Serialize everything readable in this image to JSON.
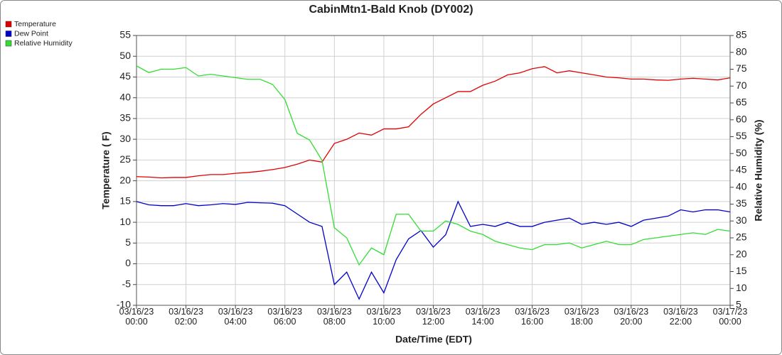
{
  "chart_data": {
    "type": "line",
    "title": "CabinMtn1-Bald Knob (DY002)",
    "xlabel": "Date/Time (EDT)",
    "ylabel": "Temperature ( F)",
    "y2label": "Relative Humidity (%)",
    "grid": true,
    "legend": "top-left",
    "x": [
      0,
      0.5,
      1,
      1.5,
      2,
      2.5,
      3,
      3.5,
      4,
      4.5,
      5,
      5.5,
      6,
      6.5,
      7,
      7.5,
      8,
      8.5,
      9,
      9.5,
      10,
      10.5,
      11,
      11.5,
      12,
      12.5,
      13,
      13.5,
      14,
      14.5,
      15,
      15.5,
      16,
      16.5,
      17,
      17.5,
      18,
      18.5,
      19,
      19.5,
      20,
      20.5,
      21,
      21.5,
      22,
      22.5,
      23,
      23.5,
      24
    ],
    "xlim": [
      0,
      24
    ],
    "xticks": [
      {
        "value": 0,
        "label": "03/16/23\n00:00"
      },
      {
        "value": 2,
        "label": "03/16/23\n02:00"
      },
      {
        "value": 4,
        "label": "03/16/23\n04:00"
      },
      {
        "value": 6,
        "label": "03/16/23\n06:00"
      },
      {
        "value": 8,
        "label": "03/16/23\n08:00"
      },
      {
        "value": 10,
        "label": "03/16/23\n10:00"
      },
      {
        "value": 12,
        "label": "03/16/23\n12:00"
      },
      {
        "value": 14,
        "label": "03/16/23\n14:00"
      },
      {
        "value": 16,
        "label": "03/16/23\n16:00"
      },
      {
        "value": 18,
        "label": "03/16/23\n18:00"
      },
      {
        "value": 20,
        "label": "03/16/23\n20:00"
      },
      {
        "value": 22,
        "label": "03/16/23\n22:00"
      },
      {
        "value": 24,
        "label": "03/17/23\n00:00"
      }
    ],
    "ylim": [
      -10,
      55
    ],
    "yticks": [
      -10,
      -5,
      0,
      5,
      10,
      15,
      20,
      25,
      30,
      35,
      40,
      45,
      50,
      55
    ],
    "y2lim": [
      5,
      85
    ],
    "y2ticks": [
      5,
      10,
      15,
      20,
      25,
      30,
      35,
      40,
      45,
      50,
      55,
      60,
      65,
      70,
      75,
      80,
      85
    ],
    "series": [
      {
        "name": "Temperature",
        "color": "#e00000",
        "values": [
          21,
          20.9,
          20.7,
          20.8,
          20.8,
          21.2,
          21.5,
          21.5,
          21.8,
          22,
          22.3,
          22.7,
          23.2,
          24,
          25,
          24.5,
          29,
          30,
          31.5,
          31,
          32.5,
          32.5,
          33,
          36,
          38.5,
          40,
          41.5,
          41.5,
          43,
          44,
          45.5,
          46,
          47,
          47.5,
          46,
          46.5,
          46,
          45.5,
          45,
          44.8,
          44.5,
          44.5,
          44.3,
          44.2,
          44.5,
          44.7,
          44.5,
          44.3,
          44.8
        ]
      },
      {
        "name": "Dew Point",
        "color": "#0000cc",
        "values": [
          15,
          14.2,
          14,
          14,
          14.5,
          14,
          14.2,
          14.5,
          14.3,
          14.8,
          14.7,
          14.6,
          14,
          12,
          10,
          9,
          -5,
          -2,
          -8.5,
          -2,
          -7,
          1,
          6,
          8,
          4,
          7,
          15,
          9,
          9.5,
          9,
          10,
          9,
          9,
          10,
          10.5,
          11,
          9.5,
          10,
          9.5,
          10,
          9,
          10.5,
          11,
          11.5,
          13,
          12.5,
          13,
          13,
          12.5
        ]
      },
      {
        "name": "Relative Humidity",
        "color": "#33dd33",
        "axis": "y2",
        "values": [
          76,
          74,
          75,
          75,
          75.5,
          73,
          73.5,
          73,
          72.5,
          72,
          72,
          70.5,
          66,
          56,
          54,
          48,
          28,
          25,
          17,
          22,
          20,
          32,
          32,
          27,
          27,
          30,
          29,
          27,
          26,
          24,
          23,
          22,
          21.5,
          23,
          23,
          23.5,
          22,
          23,
          24,
          23,
          23,
          24.5,
          25,
          25.5,
          26,
          26.5,
          26,
          27.5,
          27
        ]
      }
    ]
  }
}
